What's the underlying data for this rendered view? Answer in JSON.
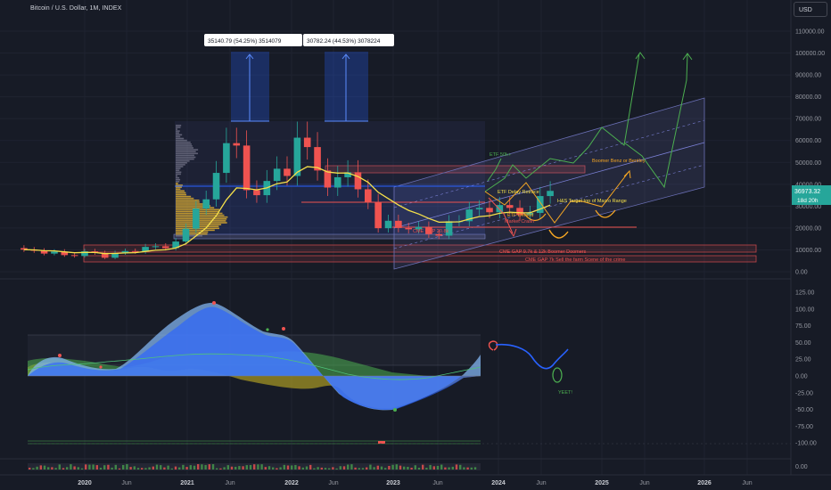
{
  "header": {
    "symbol_title": "Bitcoin / U.S. Dollar, 1M, INDEX",
    "currency_button": "USD"
  },
  "colors": {
    "background": "#171b26",
    "up_candle": "#26a69a",
    "down_candle": "#ef5350",
    "ma_line": "#f5e04a",
    "accent_blue": "#2962ff",
    "projection_green": "#4caf50",
    "projection_yellow": "#f5a623"
  },
  "price_axis": {
    "ticks": [
      "110000.00",
      "100000.00",
      "90000.00",
      "80000.00",
      "70000.00",
      "60000.00",
      "50000.00",
      "40000.00",
      "30000.00",
      "20000.00",
      "10000.00",
      "0.00"
    ],
    "last_price": "36973.32",
    "countdown": "18d 20h"
  },
  "osc_axis": {
    "ticks": [
      "125.00",
      "100.00",
      "75.00",
      "50.00",
      "25.00",
      "0.00",
      "-25.00",
      "-50.00",
      "-75.00",
      "-100.00"
    ]
  },
  "vol_axis": {
    "ticks": [
      "0.00"
    ]
  },
  "time_axis": {
    "labels": [
      {
        "text": "2020",
        "year": true
      },
      {
        "text": "Jun",
        "year": false
      },
      {
        "text": "2021",
        "year": true
      },
      {
        "text": "Jun",
        "year": false
      },
      {
        "text": "2022",
        "year": true
      },
      {
        "text": "Jun",
        "year": false
      },
      {
        "text": "2023",
        "year": true
      },
      {
        "text": "Jun",
        "year": false
      },
      {
        "text": "2024",
        "year": true
      },
      {
        "text": "Jun",
        "year": false
      },
      {
        "text": "2025",
        "year": true
      },
      {
        "text": "Jun",
        "year": false
      },
      {
        "text": "2026",
        "year": true
      },
      {
        "text": "Jun",
        "year": false
      }
    ]
  },
  "measurements": [
    {
      "text": "35140.79 (54.25%) 3514079"
    },
    {
      "text": "30782.24 (44.53%) 3078224"
    }
  ],
  "annotations": {
    "etf_50k": "ETF 50k+",
    "etf_delay_retrace": "ETF Delay Retrace",
    "etf_denied": "ETF Denied",
    "market_crash": "Market Crash",
    "cme_gap_20": "CME GAP 20.8k",
    "boomer_benz": "Boomer Benz or Bentley",
    "hs_target": "H&S Target top of Macro Range",
    "cme_gap_9": "CME GAP 9.7k & 12k Boomer Doomers",
    "cme_gap_7": "CME GAP 7k Sell the farm Scene of the crime",
    "yeet": "YEET!"
  },
  "chart_data": {
    "type": "candlestick",
    "title": "Bitcoin / U.S. Dollar, 1M, INDEX",
    "y_unit": "USD",
    "ylim": [
      0,
      115000
    ],
    "candles_approx": [
      {
        "t": "2019-07",
        "o": 10800,
        "c": 10100
      },
      {
        "t": "2019-08",
        "o": 10100,
        "c": 9600
      },
      {
        "t": "2019-09",
        "o": 9600,
        "c": 8300
      },
      {
        "t": "2019-10",
        "o": 8300,
        "c": 9200
      },
      {
        "t": "2019-11",
        "o": 9200,
        "c": 7600
      },
      {
        "t": "2019-12",
        "o": 7600,
        "c": 7200
      },
      {
        "t": "2020-01",
        "o": 7200,
        "c": 9350
      },
      {
        "t": "2020-02",
        "o": 9350,
        "c": 8600
      },
      {
        "t": "2020-03",
        "o": 8600,
        "c": 6400
      },
      {
        "t": "2020-04",
        "o": 6400,
        "c": 8600
      },
      {
        "t": "2020-05",
        "o": 8600,
        "c": 9450
      },
      {
        "t": "2020-06",
        "o": 9450,
        "c": 9150
      },
      {
        "t": "2020-07",
        "o": 9150,
        "c": 11350
      },
      {
        "t": "2020-08",
        "o": 11350,
        "c": 11650
      },
      {
        "t": "2020-09",
        "o": 11650,
        "c": 10780
      },
      {
        "t": "2020-10",
        "o": 10780,
        "c": 13800
      },
      {
        "t": "2020-11",
        "o": 13800,
        "c": 19700
      },
      {
        "t": "2020-12",
        "o": 19700,
        "c": 28900
      },
      {
        "t": "2021-01",
        "o": 28900,
        "c": 33100
      },
      {
        "t": "2021-02",
        "o": 33100,
        "c": 45200
      },
      {
        "t": "2021-03",
        "o": 45200,
        "c": 58800
      },
      {
        "t": "2021-04",
        "o": 58800,
        "c": 57700
      },
      {
        "t": "2021-05",
        "o": 57700,
        "c": 37300
      },
      {
        "t": "2021-06",
        "o": 37300,
        "c": 35000
      },
      {
        "t": "2021-07",
        "o": 35000,
        "c": 41500
      },
      {
        "t": "2021-08",
        "o": 41500,
        "c": 47100
      },
      {
        "t": "2021-09",
        "o": 47100,
        "c": 43800
      },
      {
        "t": "2021-10",
        "o": 43800,
        "c": 61300
      },
      {
        "t": "2021-11",
        "o": 61300,
        "c": 57000
      },
      {
        "t": "2021-12",
        "o": 57000,
        "c": 46300
      },
      {
        "t": "2022-01",
        "o": 46300,
        "c": 38500
      },
      {
        "t": "2022-02",
        "o": 38500,
        "c": 43200
      },
      {
        "t": "2022-03",
        "o": 43200,
        "c": 45500
      },
      {
        "t": "2022-04",
        "o": 45500,
        "c": 37700
      },
      {
        "t": "2022-05",
        "o": 37700,
        "c": 31800
      },
      {
        "t": "2022-06",
        "o": 31800,
        "c": 19900
      },
      {
        "t": "2022-07",
        "o": 19900,
        "c": 23300
      },
      {
        "t": "2022-08",
        "o": 23300,
        "c": 20000
      },
      {
        "t": "2022-09",
        "o": 20000,
        "c": 19400
      },
      {
        "t": "2022-10",
        "o": 19400,
        "c": 20500
      },
      {
        "t": "2022-11",
        "o": 20500,
        "c": 17200
      },
      {
        "t": "2022-12",
        "o": 17200,
        "c": 16500
      },
      {
        "t": "2023-01",
        "o": 16500,
        "c": 23100
      },
      {
        "t": "2023-02",
        "o": 23100,
        "c": 23100
      },
      {
        "t": "2023-03",
        "o": 23100,
        "c": 28500
      },
      {
        "t": "2023-04",
        "o": 28500,
        "c": 29200
      },
      {
        "t": "2023-05",
        "o": 29200,
        "c": 27200
      },
      {
        "t": "2023-06",
        "o": 27200,
        "c": 30500
      },
      {
        "t": "2023-07",
        "o": 30500,
        "c": 29200
      },
      {
        "t": "2023-08",
        "o": 29200,
        "c": 25900
      },
      {
        "t": "2023-09",
        "o": 25900,
        "c": 26900
      },
      {
        "t": "2023-10",
        "o": 26900,
        "c": 34600
      },
      {
        "t": "2023-11",
        "o": 34600,
        "c": 36973
      }
    ],
    "oscillator": {
      "ylim": [
        -110,
        130
      ]
    }
  }
}
